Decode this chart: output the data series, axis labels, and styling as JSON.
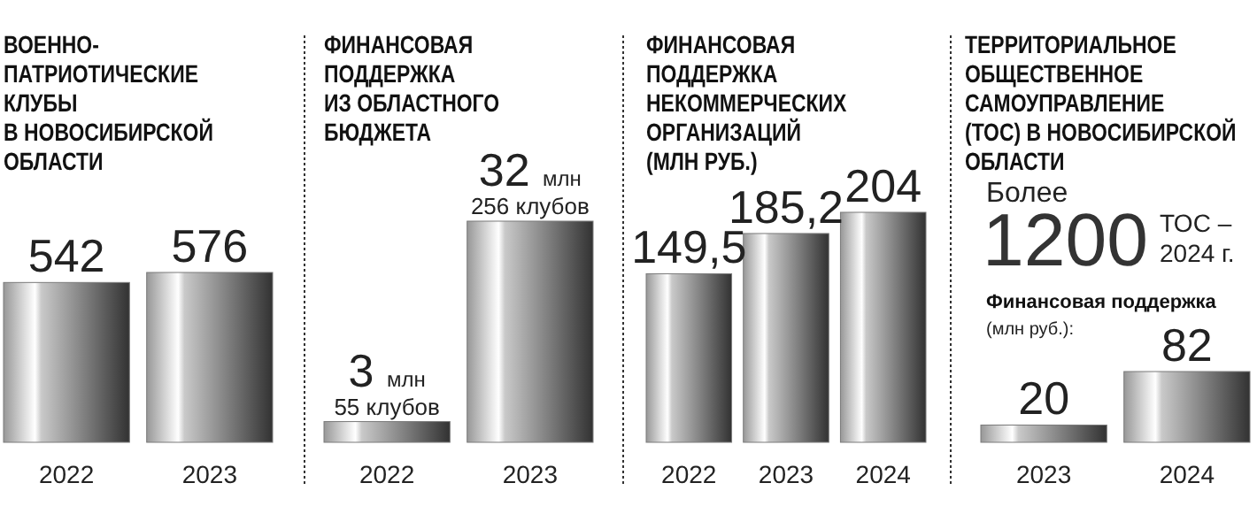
{
  "chart_data": [
    {
      "type": "bar",
      "title": "ВОЕННО-\nПАТРИОТИЧЕСКИЕ\nКЛУБЫ\nВ НОВОСИБИРСКОЙ\nОБЛАСТИ",
      "categories": [
        "2022",
        "2023"
      ],
      "values": [
        542,
        576
      ],
      "color": "#7a7a7a",
      "data_labels": true
    },
    {
      "type": "bar",
      "title": "ФИНАНСОВАЯ\nПОДДЕРЖКА\nИЗ ОБЛАСТНОГО\nБЮДЖЕТА",
      "categories": [
        "2022",
        "2023"
      ],
      "values": [
        3,
        32
      ],
      "value_labels": [
        "3 млн",
        "32 млн"
      ],
      "color": "#7a7a7a",
      "annotations": [
        {
          "text": "55 клубов",
          "x": "2022",
          "y": 3
        },
        {
          "text": "256 клубов",
          "x": "2023",
          "y": 32
        }
      ]
    },
    {
      "type": "bar",
      "title": "ФИНАНСОВАЯ\nПОДДЕРЖКА\nНЕКОММЕРЧЕСКИХ\nОРГАНИЗАЦИЙ\n(МЛН РУБ.)",
      "categories": [
        "2022",
        "2023",
        "2024"
      ],
      "values": [
        149.5,
        185.2,
        204
      ],
      "value_labels": [
        "149,5",
        "185,2",
        "204"
      ],
      "color": "#7a7a7a"
    },
    {
      "type": "bar",
      "title": "ТЕРРИТОРИАЛЬНОЕ\nОБЩЕСТВЕННОЕ\nСАМОУПРАВЛЕНИЕ\n(ТОС) В НОВОСИБИРСКОЙ\nОБЛАСТИ",
      "subtitle": "Финансовая поддержка",
      "ylabel": "(млн руб.):",
      "categories": [
        "2023",
        "2024"
      ],
      "values": [
        20,
        82
      ],
      "color": "#7a7a7a",
      "data_labels": true,
      "annotations": [
        "Более",
        "1200",
        "ТОС –\n2024 г."
      ]
    }
  ]
}
